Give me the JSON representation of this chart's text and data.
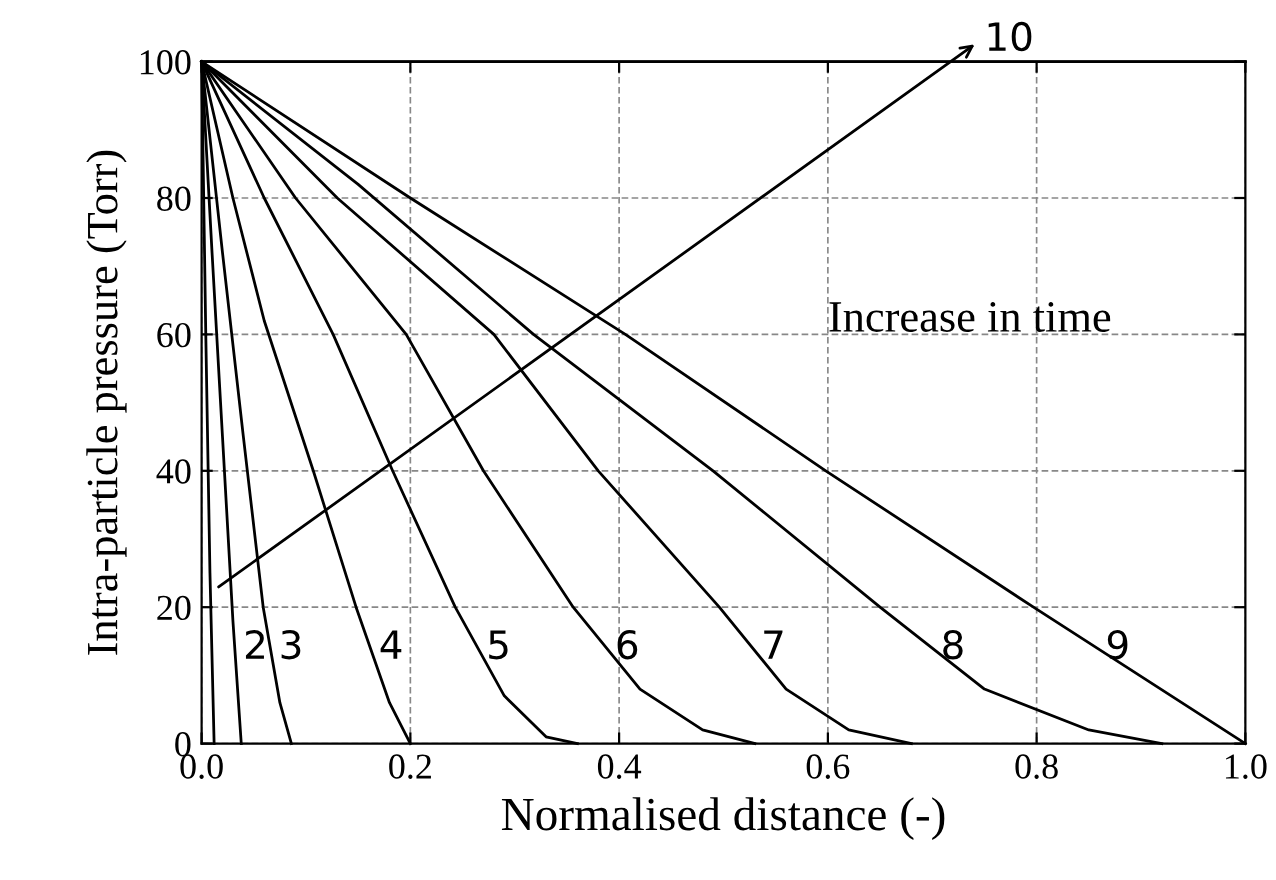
{
  "chart_data": {
    "type": "line",
    "xlabel": "Normalised distance (-)",
    "ylabel": "Intra-particle pressure (Torr)",
    "xlim": [
      0,
      1
    ],
    "ylim": [
      0,
      100
    ],
    "xticks": [
      {
        "value": 0,
        "label": "0.0"
      },
      0.2,
      0.4,
      0.6,
      0.8,
      {
        "value": 1,
        "label": "1.0"
      }
    ],
    "yticks": [
      0,
      20,
      40,
      60,
      80,
      100
    ],
    "grid": true,
    "line_style": "solid",
    "marker": "none",
    "series": [
      {
        "color": "#000000",
        "x": [
          0,
          0.004,
          0.008,
          0.012
        ],
        "values": [
          100,
          60,
          25,
          0
        ]
      },
      {
        "name": "2",
        "color": "#000000",
        "x": [
          0,
          0.01,
          0.02,
          0.03,
          0.038
        ],
        "values": [
          100,
          72,
          45,
          18,
          0
        ]
      },
      {
        "name": "3",
        "color": "#000000",
        "x": [
          0,
          0.02,
          0.04,
          0.059,
          0.075,
          0.086
        ],
        "values": [
          100,
          72,
          45,
          20,
          6,
          0
        ]
      },
      {
        "name": "4",
        "color": "#000000",
        "x": [
          0,
          0.03,
          0.06,
          0.107,
          0.148,
          0.18,
          0.2
        ],
        "values": [
          100,
          80,
          62,
          40,
          20,
          6,
          0
        ]
      },
      {
        "name": "5",
        "color": "#000000",
        "x": [
          0,
          0.06,
          0.126,
          0.183,
          0.243,
          0.29,
          0.33,
          0.36
        ],
        "values": [
          100,
          80,
          60,
          40,
          20,
          7,
          1,
          0
        ]
      },
      {
        "name": "6",
        "color": "#000000",
        "x": [
          0,
          0.09,
          0.196,
          0.27,
          0.356,
          0.42,
          0.48,
          0.53
        ],
        "values": [
          100,
          80,
          60,
          40,
          20,
          8,
          2,
          0
        ]
      },
      {
        "name": "7",
        "color": "#000000",
        "x": [
          0,
          0.13,
          0.28,
          0.38,
          0.496,
          0.56,
          0.62,
          0.68
        ],
        "values": [
          100,
          80,
          60,
          40,
          20,
          8,
          2,
          0
        ]
      },
      {
        "name": "8",
        "color": "#000000",
        "x": [
          0,
          0.15,
          0.318,
          0.49,
          0.65,
          0.75,
          0.85,
          0.92
        ],
        "values": [
          100,
          82,
          60,
          40,
          20,
          8,
          2,
          0
        ]
      },
      {
        "name": "9",
        "color": "#000000",
        "x": [
          0,
          0.2,
          0.406,
          0.598,
          0.797,
          1.0
        ],
        "values": [
          100,
          80,
          60,
          40,
          20,
          0
        ]
      },
      {
        "name": "10",
        "color": "#000000",
        "x": [
          0,
          1
        ],
        "values": [
          100,
          100
        ]
      }
    ],
    "annotations": [
      "Increase in time"
    ]
  }
}
